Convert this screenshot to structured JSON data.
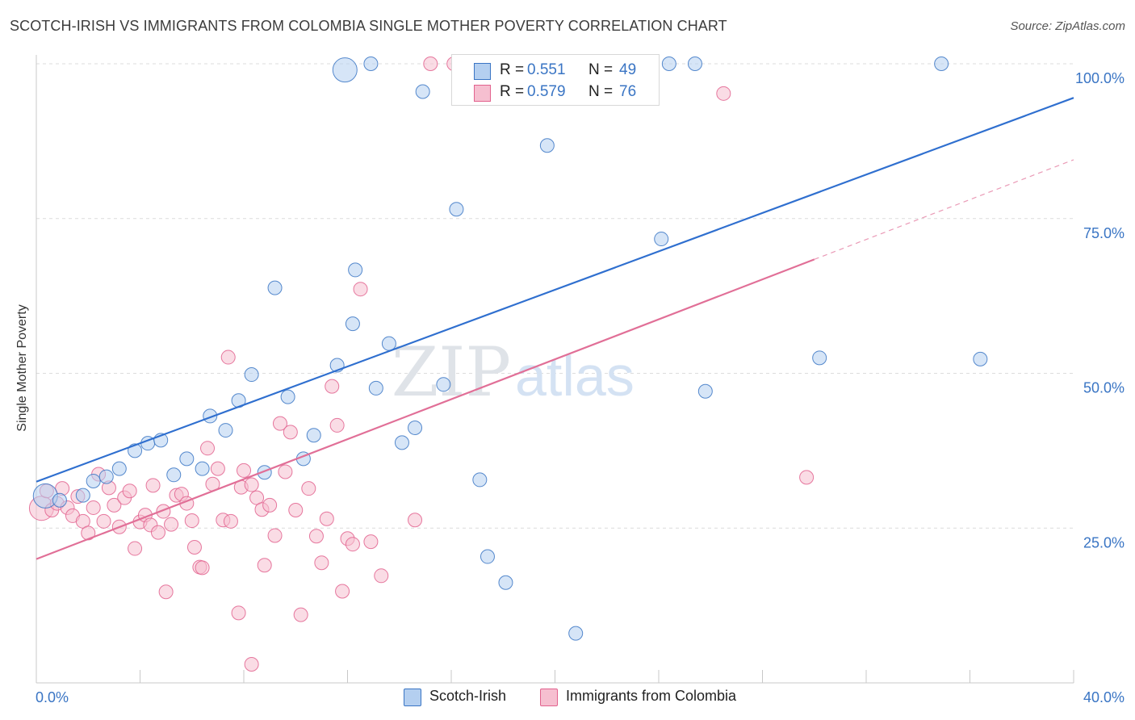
{
  "title": "SCOTCH-IRISH VS IMMIGRANTS FROM COLOMBIA SINGLE MOTHER POVERTY CORRELATION CHART",
  "source": "Source: ZipAtlas.com",
  "watermark": {
    "zip": "ZIP",
    "atlas": "atlas"
  },
  "colors": {
    "blue": "#3a75c4",
    "blue_fill": "#b4cff0",
    "blue_line": "#2f6fcf",
    "pink": "#e2628e",
    "pink_fill": "#f6bfd0",
    "pink_line": "#e16f97",
    "grid": "#dcdcdc",
    "tick_label": "#3a75c4"
  },
  "legend": {
    "r_label": "R =",
    "n_label": "N =",
    "rows": [
      {
        "series": "Scotch-Irish",
        "r": "0.551",
        "n": "49"
      },
      {
        "series": "Immigrants from Colombia",
        "r": "0.579",
        "n": "76"
      }
    ]
  },
  "bottom_legend": [
    "Scotch-Irish",
    "Immigrants from Colombia"
  ],
  "chart_data": {
    "type": "scatter",
    "title": "SCOTCH-IRISH VS IMMIGRANTS FROM COLOMBIA SINGLE MOTHER POVERTY CORRELATION CHART",
    "xlabel": "",
    "ylabel": "Single Mother Poverty",
    "xlim": [
      0,
      40
    ],
    "ylim": [
      0,
      100
    ],
    "x_tick_labels": [
      "0.0%",
      "40.0%"
    ],
    "y_ticks": [
      25,
      50,
      75,
      100
    ],
    "y_tick_labels": [
      "25.0%",
      "50.0%",
      "75.0%",
      "100.0%"
    ],
    "grid": true,
    "legend_position": "top-center",
    "series": [
      {
        "name": "Scotch-Irish",
        "color": "#3a75c4",
        "r": 0.551,
        "n": 49,
        "trend": {
          "x": [
            0,
            40
          ],
          "y": [
            32.5,
            94.5
          ],
          "extrapolated_to": null
        },
        "points": [
          {
            "x": 0.35,
            "y": 30.2,
            "big": true
          },
          {
            "x": 0.9,
            "y": 29.5
          },
          {
            "x": 1.8,
            "y": 30.3
          },
          {
            "x": 2.2,
            "y": 32.6
          },
          {
            "x": 2.7,
            "y": 33.3
          },
          {
            "x": 3.2,
            "y": 34.6
          },
          {
            "x": 3.8,
            "y": 37.5
          },
          {
            "x": 4.3,
            "y": 38.7
          },
          {
            "x": 4.8,
            "y": 39.2
          },
          {
            "x": 5.3,
            "y": 33.6
          },
          {
            "x": 5.8,
            "y": 36.2
          },
          {
            "x": 6.4,
            "y": 34.6
          },
          {
            "x": 6.7,
            "y": 43.1
          },
          {
            "x": 7.3,
            "y": 40.8
          },
          {
            "x": 7.8,
            "y": 45.6
          },
          {
            "x": 8.3,
            "y": 49.8
          },
          {
            "x": 8.8,
            "y": 34.0
          },
          {
            "x": 9.2,
            "y": 63.8
          },
          {
            "x": 9.7,
            "y": 46.2
          },
          {
            "x": 10.3,
            "y": 36.2
          },
          {
            "x": 10.7,
            "y": 40.0
          },
          {
            "x": 11.6,
            "y": 51.3
          },
          {
            "x": 11.9,
            "y": 99.0,
            "big": true
          },
          {
            "x": 12.2,
            "y": 58.0
          },
          {
            "x": 12.3,
            "y": 66.7
          },
          {
            "x": 12.9,
            "y": 100.0
          },
          {
            "x": 13.1,
            "y": 47.6
          },
          {
            "x": 13.6,
            "y": 54.8
          },
          {
            "x": 14.1,
            "y": 38.8
          },
          {
            "x": 14.6,
            "y": 41.2
          },
          {
            "x": 14.9,
            "y": 95.5
          },
          {
            "x": 15.7,
            "y": 48.2
          },
          {
            "x": 16.2,
            "y": 76.5
          },
          {
            "x": 17.1,
            "y": 32.8
          },
          {
            "x": 17.4,
            "y": 20.4
          },
          {
            "x": 18.1,
            "y": 16.2
          },
          {
            "x": 18.6,
            "y": 100.0
          },
          {
            "x": 19.7,
            "y": 86.8
          },
          {
            "x": 20.8,
            "y": 8.0
          },
          {
            "x": 21.8,
            "y": 100.0
          },
          {
            "x": 22.3,
            "y": 100.0
          },
          {
            "x": 22.8,
            "y": 100.0
          },
          {
            "x": 24.1,
            "y": 71.7
          },
          {
            "x": 24.4,
            "y": 100.0
          },
          {
            "x": 25.4,
            "y": 100.0
          },
          {
            "x": 25.8,
            "y": 47.1
          },
          {
            "x": 30.2,
            "y": 52.5
          },
          {
            "x": 34.9,
            "y": 100.0
          },
          {
            "x": 36.4,
            "y": 52.3
          }
        ]
      },
      {
        "name": "Immigrants from Colombia",
        "color": "#e2628e",
        "r": 0.579,
        "n": 76,
        "trend": {
          "x": [
            0,
            30
          ],
          "y": [
            20.0,
            68.4
          ],
          "extrapolated_to": {
            "x": 40,
            "y": 84.5
          }
        },
        "points": [
          {
            "x": 0.2,
            "y": 28.2,
            "big": true
          },
          {
            "x": 0.4,
            "y": 31.0
          },
          {
            "x": 0.6,
            "y": 27.9
          },
          {
            "x": 0.8,
            "y": 29.0
          },
          {
            "x": 1.0,
            "y": 31.4
          },
          {
            "x": 1.2,
            "y": 28.3
          },
          {
            "x": 1.4,
            "y": 27.0
          },
          {
            "x": 1.6,
            "y": 30.1
          },
          {
            "x": 1.8,
            "y": 26.1
          },
          {
            "x": 2.0,
            "y": 24.2
          },
          {
            "x": 2.2,
            "y": 28.3
          },
          {
            "x": 2.4,
            "y": 33.7
          },
          {
            "x": 2.6,
            "y": 26.1
          },
          {
            "x": 2.8,
            "y": 31.5
          },
          {
            "x": 3.0,
            "y": 28.7
          },
          {
            "x": 3.2,
            "y": 25.2
          },
          {
            "x": 3.4,
            "y": 29.9
          },
          {
            "x": 3.6,
            "y": 31.0
          },
          {
            "x": 3.8,
            "y": 21.7
          },
          {
            "x": 4.0,
            "y": 26.0
          },
          {
            "x": 4.2,
            "y": 27.1
          },
          {
            "x": 4.4,
            "y": 25.5
          },
          {
            "x": 4.5,
            "y": 31.9
          },
          {
            "x": 4.7,
            "y": 24.3
          },
          {
            "x": 4.9,
            "y": 27.7
          },
          {
            "x": 5.0,
            "y": 14.7
          },
          {
            "x": 5.2,
            "y": 25.6
          },
          {
            "x": 5.4,
            "y": 30.3
          },
          {
            "x": 5.6,
            "y": 30.5
          },
          {
            "x": 5.8,
            "y": 29.0
          },
          {
            "x": 6.0,
            "y": 26.2
          },
          {
            "x": 6.1,
            "y": 21.9
          },
          {
            "x": 6.3,
            "y": 18.7
          },
          {
            "x": 6.4,
            "y": 18.6
          },
          {
            "x": 6.6,
            "y": 37.9
          },
          {
            "x": 6.8,
            "y": 32.1
          },
          {
            "x": 7.0,
            "y": 34.6
          },
          {
            "x": 7.2,
            "y": 26.3
          },
          {
            "x": 7.4,
            "y": 52.6
          },
          {
            "x": 7.5,
            "y": 26.1
          },
          {
            "x": 7.8,
            "y": 11.3
          },
          {
            "x": 7.9,
            "y": 31.6
          },
          {
            "x": 8.0,
            "y": 34.3
          },
          {
            "x": 8.3,
            "y": 32.0
          },
          {
            "x": 8.5,
            "y": 29.9
          },
          {
            "x": 8.7,
            "y": 28.0
          },
          {
            "x": 8.8,
            "y": 19.0
          },
          {
            "x": 9.0,
            "y": 28.7
          },
          {
            "x": 9.2,
            "y": 23.8
          },
          {
            "x": 9.4,
            "y": 41.9
          },
          {
            "x": 9.6,
            "y": 34.1
          },
          {
            "x": 9.8,
            "y": 40.5
          },
          {
            "x": 10.0,
            "y": 27.9
          },
          {
            "x": 10.2,
            "y": 11.0
          },
          {
            "x": 10.5,
            "y": 31.4
          },
          {
            "x": 10.8,
            "y": 23.7
          },
          {
            "x": 11.0,
            "y": 19.4
          },
          {
            "x": 11.2,
            "y": 26.5
          },
          {
            "x": 11.4,
            "y": 47.9
          },
          {
            "x": 11.6,
            "y": 41.6
          },
          {
            "x": 11.8,
            "y": 14.8
          },
          {
            "x": 12.0,
            "y": 23.3
          },
          {
            "x": 12.2,
            "y": 22.4
          },
          {
            "x": 12.5,
            "y": 63.6
          },
          {
            "x": 12.9,
            "y": 22.8
          },
          {
            "x": 13.3,
            "y": 17.3
          },
          {
            "x": 8.3,
            "y": 3.0
          },
          {
            "x": 14.6,
            "y": 26.3
          },
          {
            "x": 15.2,
            "y": 100.0
          },
          {
            "x": 16.1,
            "y": 100.0
          },
          {
            "x": 17.6,
            "y": 100.0
          },
          {
            "x": 18.4,
            "y": 100.0
          },
          {
            "x": 20.9,
            "y": 100.0
          },
          {
            "x": 22.4,
            "y": 100.0
          },
          {
            "x": 26.5,
            "y": 95.2
          },
          {
            "x": 29.7,
            "y": 33.2
          }
        ]
      }
    ]
  }
}
